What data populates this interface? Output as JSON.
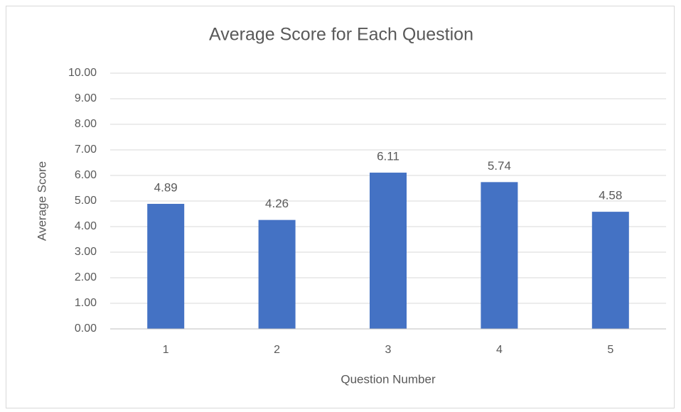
{
  "chart_data": {
    "type": "bar",
    "title": "Average Score for Each Question",
    "x_label": "Question Number",
    "y_label": "Average Score",
    "categories": [
      "1",
      "2",
      "3",
      "4",
      "5"
    ],
    "values": [
      4.89,
      4.26,
      6.11,
      5.74,
      4.58
    ],
    "color": "#4472c4",
    "ylim": [
      0,
      10
    ],
    "yticks": [
      {
        "value": 0,
        "label": "0.00"
      },
      {
        "value": 1,
        "label": "1.00"
      },
      {
        "value": 2,
        "label": "2.00"
      },
      {
        "value": 3,
        "label": "3.00"
      },
      {
        "value": 4,
        "label": "4.00"
      },
      {
        "value": 5,
        "label": "5.00"
      },
      {
        "value": 6,
        "label": "6.00"
      },
      {
        "value": 7,
        "label": "7.00"
      },
      {
        "value": 8,
        "label": "8.00"
      },
      {
        "value": 9,
        "label": "9.00"
      },
      {
        "value": 10,
        "label": "10.00"
      }
    ],
    "grid": true
  }
}
